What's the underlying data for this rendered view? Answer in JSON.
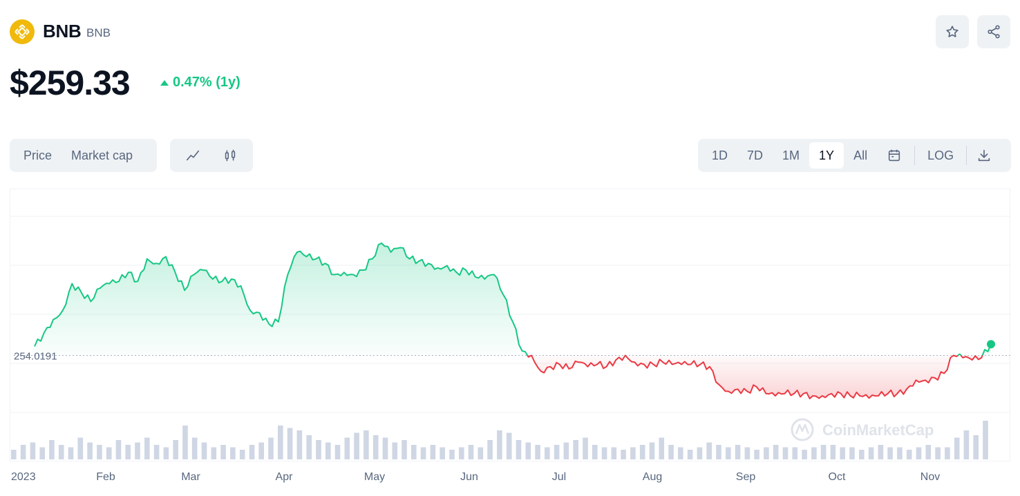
{
  "coin": {
    "name": "BNB",
    "symbol": "BNB",
    "logo_icon": "bnb-logo-icon",
    "price": "$259.33",
    "change": "0.47% (1y)",
    "change_color": "#16c784"
  },
  "header_actions": {
    "watchlist_icon": "star-icon",
    "share_icon": "share-icon"
  },
  "chart_tabs": [
    "Price",
    "Market cap"
  ],
  "chart_type_icons": [
    "line-chart-icon",
    "candlestick-icon"
  ],
  "ranges": [
    {
      "label": "1D",
      "active": false
    },
    {
      "label": "7D",
      "active": false
    },
    {
      "label": "1M",
      "active": false
    },
    {
      "label": "1Y",
      "active": true
    },
    {
      "label": "All",
      "active": false
    }
  ],
  "toolbar": {
    "calendar_icon": "calendar-icon",
    "log_label": "LOG",
    "download_icon": "download-icon"
  },
  "watermark": "CoinMarketCap",
  "chart_data": {
    "type": "area",
    "baseline_label": "254.0191",
    "baseline": 254.0191,
    "ylim": [
      220,
      320
    ],
    "grid": true,
    "up_color": "#16c784",
    "down_color": "#ea3943",
    "x_labels": [
      "2023",
      "Feb",
      "Mar",
      "Apr",
      "May",
      "Jun",
      "Jul",
      "Aug",
      "Sep",
      "Oct",
      "Nov"
    ],
    "anchors": [
      [
        0,
        258
      ],
      [
        1,
        264
      ],
      [
        2,
        270
      ],
      [
        3,
        274
      ],
      [
        4,
        286
      ],
      [
        5,
        282
      ],
      [
        6,
        278
      ],
      [
        7,
        284
      ],
      [
        8,
        286
      ],
      [
        9,
        287
      ],
      [
        10,
        291
      ],
      [
        11,
        287
      ],
      [
        12,
        297
      ],
      [
        13,
        295
      ],
      [
        14,
        298
      ],
      [
        15,
        291
      ],
      [
        16,
        283
      ],
      [
        17,
        290
      ],
      [
        18,
        292
      ],
      [
        19,
        288
      ],
      [
        20,
        287
      ],
      [
        21,
        288
      ],
      [
        22,
        285
      ],
      [
        23,
        274
      ],
      [
        24,
        273
      ],
      [
        25,
        268
      ],
      [
        26,
        269
      ],
      [
        27,
        290
      ],
      [
        28,
        300
      ],
      [
        29,
        298
      ],
      [
        30,
        297
      ],
      [
        31,
        295
      ],
      [
        32,
        290
      ],
      [
        33,
        291
      ],
      [
        34,
        290
      ],
      [
        35,
        292
      ],
      [
        36,
        297
      ],
      [
        37,
        304
      ],
      [
        38,
        300
      ],
      [
        39,
        302
      ],
      [
        40,
        297
      ],
      [
        41,
        296
      ],
      [
        42,
        295
      ],
      [
        43,
        293
      ],
      [
        44,
        294
      ],
      [
        45,
        291
      ],
      [
        46,
        292
      ],
      [
        47,
        289
      ],
      [
        48,
        288
      ],
      [
        49,
        290
      ],
      [
        50,
        281
      ],
      [
        51,
        269
      ],
      [
        52,
        256
      ],
      [
        53,
        254
      ],
      [
        54,
        247
      ],
      [
        55,
        249
      ],
      [
        56,
        250
      ],
      [
        57,
        248
      ],
      [
        58,
        251
      ],
      [
        59,
        249
      ],
      [
        60,
        250
      ],
      [
        61,
        249
      ],
      [
        62,
        252
      ],
      [
        63,
        254
      ],
      [
        64,
        251
      ],
      [
        65,
        250
      ],
      [
        66,
        250
      ],
      [
        67,
        251
      ],
      [
        68,
        250
      ],
      [
        69,
        250
      ],
      [
        70,
        250
      ],
      [
        71,
        250
      ],
      [
        72,
        249
      ],
      [
        73,
        241
      ],
      [
        74,
        238
      ],
      [
        75,
        239
      ],
      [
        76,
        238
      ],
      [
        77,
        240
      ],
      [
        78,
        237
      ],
      [
        79,
        236
      ],
      [
        80,
        237
      ],
      [
        81,
        237
      ],
      [
        82,
        237
      ],
      [
        83,
        236
      ],
      [
        84,
        236
      ],
      [
        85,
        237
      ],
      [
        86,
        237
      ],
      [
        87,
        236
      ],
      [
        88,
        236
      ],
      [
        89,
        235
      ],
      [
        90,
        236
      ],
      [
        91,
        237
      ],
      [
        92,
        237
      ],
      [
        93,
        239
      ],
      [
        94,
        243
      ],
      [
        95,
        243
      ],
      [
        96,
        244
      ],
      [
        97,
        246
      ],
      [
        98,
        254
      ],
      [
        99,
        253
      ],
      [
        100,
        252
      ],
      [
        101,
        253
      ],
      [
        102,
        259
      ]
    ],
    "volume": [
      4,
      6,
      7,
      5,
      8,
      6,
      5,
      9,
      7,
      6,
      5,
      8,
      6,
      7,
      9,
      6,
      5,
      8,
      14,
      9,
      7,
      5,
      6,
      5,
      4,
      6,
      7,
      9,
      14,
      13,
      12,
      10,
      8,
      7,
      6,
      9,
      11,
      12,
      10,
      9,
      7,
      8,
      6,
      5,
      6,
      5,
      4,
      5,
      6,
      5,
      8,
      12,
      11,
      8,
      7,
      6,
      5,
      6,
      7,
      8,
      9,
      6,
      5,
      5,
      4,
      5,
      6,
      7,
      9,
      6,
      5,
      4,
      5,
      7,
      6,
      5,
      6,
      5,
      4,
      5,
      6,
      5,
      5,
      4,
      5,
      6,
      6,
      5,
      5,
      4,
      5,
      6,
      5,
      5,
      4,
      5,
      6,
      5,
      5,
      9,
      12,
      10,
      16
    ]
  }
}
